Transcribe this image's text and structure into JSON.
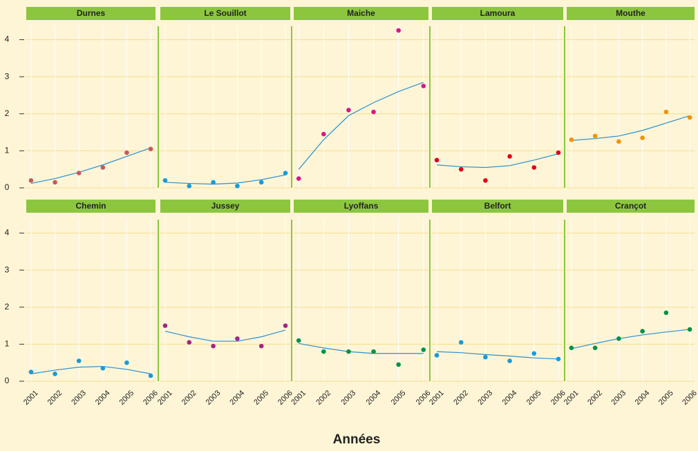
{
  "x_label": "Années",
  "chart_data": [
    {
      "type": "scatter",
      "title": "Durnes",
      "x": [
        2001,
        2002,
        2003,
        2004,
        2005,
        2006
      ],
      "values": [
        0.2,
        0.15,
        0.4,
        0.55,
        0.95,
        1.05
      ],
      "trend": [
        0.12,
        0.25,
        0.42,
        0.62,
        0.85,
        1.08
      ],
      "color": "#c8595a",
      "trend_color": "#2a8fd0",
      "xlim": [
        2000.8,
        2006.2
      ],
      "ylim": [
        0,
        4.4
      ],
      "yticks": [
        0,
        1,
        2,
        3,
        4
      ],
      "grid": true
    },
    {
      "type": "scatter",
      "title": "Le Souillot",
      "x": [
        2001,
        2002,
        2003,
        2004,
        2005,
        2006
      ],
      "values": [
        0.2,
        0.05,
        0.15,
        0.05,
        0.15,
        0.4
      ],
      "trend": [
        0.15,
        0.12,
        0.1,
        0.13,
        0.22,
        0.35
      ],
      "color": "#1a9ad6",
      "trend_color": "#2a8fd0",
      "xlim": [
        2000.8,
        2006.2
      ],
      "ylim": [
        0,
        4.4
      ],
      "yticks": [
        0,
        1,
        2,
        3,
        4
      ],
      "grid": true
    },
    {
      "type": "scatter",
      "title": "Maiche",
      "x": [
        2001,
        2002,
        2003,
        2004,
        2005,
        2006
      ],
      "values": [
        0.25,
        1.45,
        2.1,
        2.05,
        4.25,
        2.75
      ],
      "trend": [
        0.5,
        1.3,
        1.95,
        2.3,
        2.6,
        2.85
      ],
      "color": "#d6198a",
      "trend_color": "#2a8fd0",
      "xlim": [
        2000.8,
        2006.2
      ],
      "ylim": [
        0,
        4.4
      ],
      "yticks": [
        0,
        1,
        2,
        3,
        4
      ],
      "grid": true
    },
    {
      "type": "scatter",
      "title": "Lamoura",
      "x": [
        2001,
        2002,
        2003,
        2004,
        2005,
        2006
      ],
      "values": [
        0.75,
        0.5,
        0.2,
        0.85,
        0.55,
        0.95
      ],
      "trend": [
        0.62,
        0.57,
        0.55,
        0.6,
        0.75,
        0.92
      ],
      "color": "#e2001a",
      "trend_color": "#2a8fd0",
      "xlim": [
        2000.8,
        2006.2
      ],
      "ylim": [
        0,
        4.4
      ],
      "yticks": [
        0,
        1,
        2,
        3,
        4
      ],
      "grid": true
    },
    {
      "type": "scatter",
      "title": "Mouthe",
      "x": [
        2001,
        2002,
        2003,
        2004,
        2005,
        2006
      ],
      "values": [
        1.3,
        1.4,
        1.25,
        1.35,
        2.05,
        1.9
      ],
      "trend": [
        1.28,
        1.33,
        1.4,
        1.55,
        1.75,
        1.95
      ],
      "color": "#f39200",
      "trend_color": "#2a8fd0",
      "xlim": [
        2000.8,
        2006.2
      ],
      "ylim": [
        0,
        4.4
      ],
      "yticks": [
        0,
        1,
        2,
        3,
        4
      ],
      "grid": true
    },
    {
      "type": "scatter",
      "title": "Chemin",
      "x": [
        2001,
        2002,
        2003,
        2004,
        2005,
        2006
      ],
      "values": [
        0.25,
        0.2,
        0.55,
        0.35,
        0.5,
        0.15
      ],
      "trend": [
        0.2,
        0.3,
        0.38,
        0.4,
        0.32,
        0.2
      ],
      "color": "#1a9ad6",
      "trend_color": "#2a8fd0",
      "xlim": [
        2000.8,
        2006.2
      ],
      "ylim": [
        0,
        4.4
      ],
      "yticks": [
        0,
        1,
        2,
        3,
        4
      ],
      "grid": true
    },
    {
      "type": "scatter",
      "title": "Jussey",
      "x": [
        2001,
        2002,
        2003,
        2004,
        2005,
        2006
      ],
      "values": [
        1.5,
        1.05,
        0.95,
        1.15,
        0.95,
        1.5
      ],
      "trend": [
        1.35,
        1.2,
        1.08,
        1.08,
        1.2,
        1.38
      ],
      "color": "#a3267f",
      "trend_color": "#2a8fd0",
      "xlim": [
        2000.8,
        2006.2
      ],
      "ylim": [
        0,
        4.4
      ],
      "yticks": [
        0,
        1,
        2,
        3,
        4
      ],
      "grid": true
    },
    {
      "type": "scatter",
      "title": "Lyoffans",
      "x": [
        2001,
        2002,
        2003,
        2004,
        2005,
        2006
      ],
      "values": [
        1.1,
        0.8,
        0.8,
        0.8,
        0.45,
        0.85
      ],
      "trend": [
        1.02,
        0.9,
        0.8,
        0.75,
        0.75,
        0.75
      ],
      "color": "#00924a",
      "trend_color": "#2a8fd0",
      "xlim": [
        2000.8,
        2006.2
      ],
      "ylim": [
        0,
        4.4
      ],
      "yticks": [
        0,
        1,
        2,
        3,
        4
      ],
      "grid": true
    },
    {
      "type": "scatter",
      "title": "Belfort",
      "x": [
        2001,
        2002,
        2003,
        2004,
        2005,
        2006
      ],
      "values": [
        0.7,
        1.05,
        0.65,
        0.55,
        0.75,
        0.6
      ],
      "trend": [
        0.8,
        0.77,
        0.72,
        0.68,
        0.63,
        0.6
      ],
      "color": "#1a9ad6",
      "trend_color": "#2a8fd0",
      "xlim": [
        2000.8,
        2006.2
      ],
      "ylim": [
        0,
        4.4
      ],
      "yticks": [
        0,
        1,
        2,
        3,
        4
      ],
      "grid": true
    },
    {
      "type": "scatter",
      "title": "Crançot",
      "x": [
        2001,
        2002,
        2003,
        2004,
        2005,
        2006
      ],
      "values": [
        0.9,
        0.9,
        1.15,
        1.35,
        1.85,
        1.4
      ],
      "trend": [
        0.88,
        1.02,
        1.15,
        1.25,
        1.33,
        1.4
      ],
      "color": "#00924a",
      "trend_color": "#2a8fd0",
      "xlim": [
        2000.8,
        2006.2
      ],
      "ylim": [
        0,
        4.4
      ],
      "yticks": [
        0,
        1,
        2,
        3,
        4
      ],
      "grid": true
    }
  ]
}
